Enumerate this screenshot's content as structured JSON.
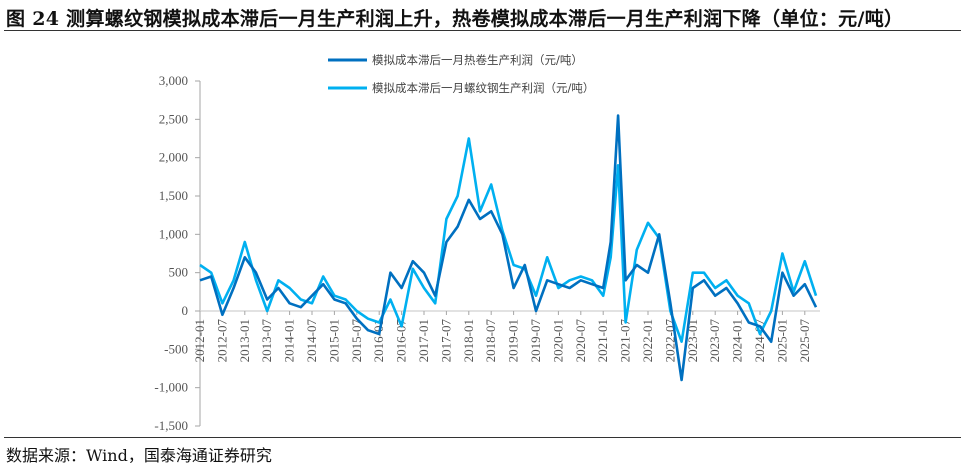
{
  "title": "图 24 测算螺纹钢模拟成本滞后一月生产利润上升，热卷模拟成本滞后一月生产利润下降（单位：元/吨）",
  "source": "数据来源：Wind，国泰海通证券研究",
  "colors": {
    "hot_rolled": "#0070c0",
    "rebar": "#00b0f0",
    "axis": "#a6a6a6",
    "zero_line": "#d0d0d0"
  },
  "chart_data": {
    "type": "line",
    "title": "测算螺纹钢模拟成本滞后一月生产利润上升，热卷模拟成本滞后一月生产利润下降",
    "xlabel": "",
    "ylabel": "元/吨",
    "ylim": [
      -1500,
      3000
    ],
    "yticks": [
      3000,
      2500,
      2000,
      1500,
      1000,
      500,
      0,
      -500,
      -1000,
      -1500
    ],
    "ytick_labels": [
      "3,000",
      "2,500",
      "2,000",
      "1,500",
      "1,000",
      "500",
      "0",
      "-500",
      "-1,000",
      "-1,500"
    ],
    "xtick_labels": [
      "2012-01",
      "2012-07",
      "2013-01",
      "2013-07",
      "2014-01",
      "2014-07",
      "2015-01",
      "2015-07",
      "2016-01",
      "2016-07",
      "2017-01",
      "2017-07",
      "2018-01",
      "2018-07",
      "2019-01",
      "2019-07",
      "2020-01",
      "2020-07",
      "2021-01",
      "2021-07",
      "2022-01",
      "2022-07",
      "2023-01",
      "2023-07",
      "2024-01",
      "2024-07",
      "2025-01",
      "2025-07"
    ],
    "legend_position": "top-center",
    "grid": false,
    "x": [
      "2012-01",
      "2012-04",
      "2012-07",
      "2012-10",
      "2013-01",
      "2013-04",
      "2013-07",
      "2013-10",
      "2014-01",
      "2014-04",
      "2014-07",
      "2014-10",
      "2015-01",
      "2015-04",
      "2015-07",
      "2015-10",
      "2016-01",
      "2016-04",
      "2016-07",
      "2016-10",
      "2017-01",
      "2017-04",
      "2017-07",
      "2017-10",
      "2018-01",
      "2018-04",
      "2018-07",
      "2018-10",
      "2019-01",
      "2019-04",
      "2019-07",
      "2019-10",
      "2020-01",
      "2020-04",
      "2020-07",
      "2020-10",
      "2021-01",
      "2021-03",
      "2021-05",
      "2021-07",
      "2021-10",
      "2022-01",
      "2022-04",
      "2022-07",
      "2022-10",
      "2023-01",
      "2023-04",
      "2023-07",
      "2023-10",
      "2024-01",
      "2024-04",
      "2024-07",
      "2024-10",
      "2025-01",
      "2025-04",
      "2025-07",
      "2025-10"
    ],
    "series": [
      {
        "name": "模拟成本滞后一月热卷生产利润（元/吨）",
        "color": "#0070c0",
        "values": [
          400,
          450,
          -50,
          300,
          700,
          500,
          150,
          300,
          100,
          50,
          200,
          350,
          150,
          100,
          -100,
          -250,
          -300,
          500,
          300,
          650,
          500,
          200,
          900,
          1100,
          1450,
          1200,
          1300,
          1000,
          300,
          600,
          0,
          400,
          350,
          300,
          400,
          350,
          300,
          900,
          2550,
          400,
          600,
          500,
          1000,
          100,
          -900,
          300,
          400,
          200,
          300,
          100,
          -150,
          -200,
          -400,
          500,
          200,
          350,
          50
        ]
      },
      {
        "name": "模拟成本滞后一月螺纹钢生产利润（元/吨）",
        "color": "#00b0f0",
        "values": [
          600,
          500,
          100,
          400,
          900,
          400,
          0,
          400,
          300,
          150,
          100,
          450,
          200,
          150,
          0,
          -100,
          -150,
          150,
          -200,
          550,
          300,
          100,
          1200,
          1500,
          2250,
          1300,
          1650,
          1050,
          600,
          550,
          200,
          700,
          300,
          400,
          450,
          400,
          200,
          700,
          1900,
          -150,
          800,
          1150,
          950,
          0,
          -400,
          500,
          500,
          300,
          400,
          200,
          100,
          -300,
          0,
          750,
          250,
          650,
          200
        ]
      }
    ]
  },
  "legend": {
    "items": [
      {
        "label": "模拟成本滞后一月热卷生产利润（元/吨）",
        "color": "#0070c0"
      },
      {
        "label": "模拟成本滞后一月螺纹钢生产利润（元/吨）",
        "color": "#00b0f0"
      }
    ]
  }
}
